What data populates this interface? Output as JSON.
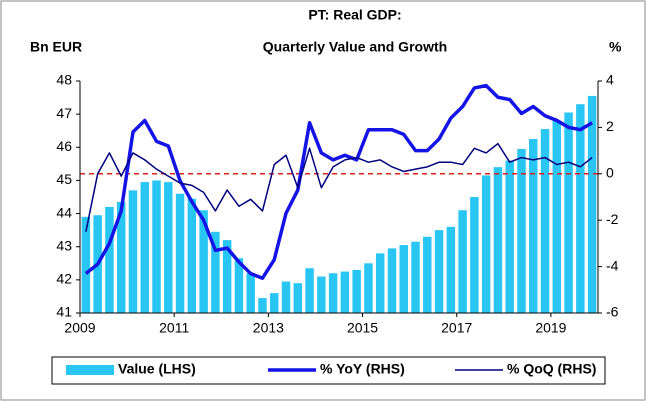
{
  "chart_data": {
    "type": "bar_line",
    "title": [
      "PT: Real GDP:",
      "Quarterly Value and Growth"
    ],
    "y_label": "Bn EUR",
    "y2_label": "%",
    "categories": [
      "2009",
      null,
      null,
      null,
      null,
      null,
      null,
      null,
      "2011",
      null,
      null,
      null,
      null,
      null,
      null,
      null,
      "2013",
      null,
      null,
      null,
      null,
      null,
      null,
      null,
      "2015",
      null,
      null,
      null,
      null,
      null,
      null,
      null,
      "2017",
      null,
      null,
      null,
      null,
      null,
      null,
      null,
      "2019",
      null,
      null,
      null
    ],
    "series": [
      {
        "name": "Value (LHS)",
        "type": "bar",
        "color": "#29c6f4",
        "axis": "y",
        "values": [
          43.9,
          43.95,
          44.2,
          44.35,
          44.7,
          44.95,
          45.0,
          44.95,
          44.6,
          44.45,
          44.1,
          43.45,
          43.2,
          42.65,
          42.2,
          41.45,
          41.6,
          41.95,
          41.9,
          42.35,
          42.1,
          42.2,
          42.25,
          42.3,
          42.5,
          42.8,
          42.95,
          43.05,
          43.15,
          43.3,
          43.5,
          43.6,
          44.1,
          44.5,
          45.15,
          45.4,
          45.6,
          45.95,
          46.25,
          46.55,
          46.8,
          47.05,
          47.3,
          47.55
        ]
      },
      {
        "name": "% YoY (RHS)",
        "type": "line",
        "color": "#1414e6",
        "width": 3.5,
        "axis": "y2",
        "values": [
          -4.3,
          -3.9,
          -3.0,
          -1.6,
          1.8,
          2.3,
          1.4,
          1.2,
          -0.3,
          -1.2,
          -2.0,
          -3.3,
          -3.2,
          -3.8,
          -4.3,
          -4.5,
          -3.7,
          -1.7,
          -0.7,
          2.2,
          0.9,
          0.6,
          0.8,
          0.6,
          1.9,
          1.9,
          1.9,
          1.7,
          1.0,
          1.0,
          1.5,
          2.4,
          2.9,
          3.7,
          3.8,
          3.3,
          3.2,
          2.6,
          2.9,
          2.5,
          2.3,
          2.0,
          1.9,
          2.2
        ]
      },
      {
        "name": "% QoQ (RHS)",
        "type": "line",
        "color": "#000080",
        "width": 1.5,
        "axis": "y2",
        "values": [
          -2.5,
          0.0,
          0.9,
          -0.1,
          0.9,
          0.6,
          0.2,
          -0.1,
          -0.4,
          -0.5,
          -0.8,
          -1.6,
          -0.7,
          -1.4,
          -1.1,
          -1.6,
          0.4,
          0.8,
          -0.6,
          1.1,
          -0.6,
          0.3,
          0.6,
          0.7,
          0.5,
          0.6,
          0.3,
          0.1,
          0.2,
          0.3,
          0.5,
          0.5,
          0.4,
          1.1,
          0.9,
          1.3,
          0.5,
          0.7,
          0.6,
          0.7,
          0.4,
          0.5,
          0.3,
          0.7
        ]
      }
    ],
    "ylim": [
      41,
      48
    ],
    "yticks": [
      41,
      42,
      43,
      44,
      45,
      46,
      47,
      48
    ],
    "y2lim": [
      -6,
      4
    ],
    "y2ticks": [
      -6,
      -4,
      -2,
      0,
      2,
      4
    ],
    "ref_line": {
      "value": 0,
      "axis": "y2",
      "color": "#e0201c"
    },
    "legend": "bottom"
  }
}
